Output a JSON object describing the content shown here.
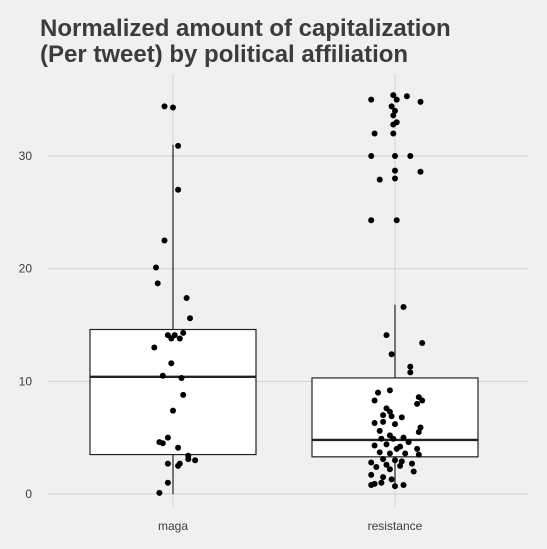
{
  "chart_data": {
    "type": "box",
    "title_lines": [
      "Normalized amount of capitalization",
      "(Per tweet) by political affiliation"
    ],
    "xlabel": "",
    "ylabel": "",
    "categories": [
      "maga",
      "resistance"
    ],
    "ylim": [
      -1,
      37
    ],
    "y_ticks": [
      0,
      10,
      20,
      30
    ],
    "grid": true,
    "boxes": [
      {
        "category": "maga",
        "q1": 3.5,
        "median": 10.4,
        "q3": 14.6,
        "whisker_low": 0,
        "whisker_high": 31.0
      },
      {
        "category": "resistance",
        "q1": 3.3,
        "median": 4.8,
        "q3": 10.3,
        "whisker_low": 0.6,
        "whisker_high": 16.8
      }
    ],
    "points": {
      "maga": [
        [
          -0.05,
          34.4
        ],
        [
          0.0,
          34.3
        ],
        [
          0.03,
          30.9
        ],
        [
          0.03,
          27.0
        ],
        [
          -0.05,
          22.5
        ],
        [
          -0.1,
          20.1
        ],
        [
          -0.09,
          18.7
        ],
        [
          0.08,
          17.4
        ],
        [
          0.1,
          15.6
        ],
        [
          0.06,
          14.3
        ],
        [
          -0.03,
          14.1
        ],
        [
          0.01,
          14.1
        ],
        [
          0.04,
          13.8
        ],
        [
          -0.01,
          13.8
        ],
        [
          -0.11,
          13.0
        ],
        [
          -0.01,
          11.6
        ],
        [
          -0.06,
          10.5
        ],
        [
          0.05,
          10.3
        ],
        [
          0.06,
          8.8
        ],
        [
          0.0,
          7.4
        ],
        [
          -0.03,
          5.0
        ],
        [
          -0.08,
          4.6
        ],
        [
          -0.06,
          4.5
        ],
        [
          0.03,
          4.1
        ],
        [
          0.09,
          3.4
        ],
        [
          0.09,
          3.1
        ],
        [
          0.13,
          3.0
        ],
        [
          0.04,
          2.7
        ],
        [
          -0.03,
          2.7
        ],
        [
          0.03,
          2.5
        ],
        [
          -0.03,
          1.0
        ],
        [
          -0.08,
          0.1
        ]
      ],
      "resistance": [
        [
          -0.14,
          35.0
        ],
        [
          -0.01,
          35.4
        ],
        [
          0.07,
          35.3
        ],
        [
          0.01,
          35.0
        ],
        [
          0.15,
          34.8
        ],
        [
          -0.02,
          34.4
        ],
        [
          0.0,
          34.0
        ],
        [
          -0.01,
          33.6
        ],
        [
          0.01,
          33.0
        ],
        [
          -0.01,
          32.8
        ],
        [
          -0.01,
          32.0
        ],
        [
          -0.12,
          32.0
        ],
        [
          -0.14,
          30.0
        ],
        [
          0.0,
          30.0
        ],
        [
          0.09,
          30.0
        ],
        [
          0.0,
          28.7
        ],
        [
          0.15,
          28.6
        ],
        [
          0.0,
          28.0
        ],
        [
          -0.09,
          27.9
        ],
        [
          -0.14,
          24.3
        ],
        [
          0.01,
          24.3
        ],
        [
          0.05,
          16.6
        ],
        [
          -0.05,
          14.1
        ],
        [
          0.16,
          13.4
        ],
        [
          -0.02,
          12.4
        ],
        [
          0.09,
          11.3
        ],
        [
          0.09,
          10.8
        ],
        [
          -0.03,
          9.2
        ],
        [
          -0.1,
          9.0
        ],
        [
          0.14,
          8.6
        ],
        [
          0.16,
          8.3
        ],
        [
          0.13,
          8.0
        ],
        [
          -0.12,
          8.3
        ],
        [
          -0.05,
          7.6
        ],
        [
          -0.03,
          7.3
        ],
        [
          -0.07,
          7.0
        ],
        [
          -0.02,
          6.9
        ],
        [
          0.04,
          6.8
        ],
        [
          -0.12,
          6.3
        ],
        [
          -0.07,
          6.4
        ],
        [
          0.0,
          6.2
        ],
        [
          0.15,
          5.9
        ],
        [
          0.14,
          5.5
        ],
        [
          -0.09,
          5.6
        ],
        [
          -0.03,
          5.2
        ],
        [
          0.05,
          5.0
        ],
        [
          -0.08,
          4.9
        ],
        [
          -0.01,
          4.9
        ],
        [
          0.08,
          4.6
        ],
        [
          -0.05,
          4.4
        ],
        [
          0.03,
          4.2
        ],
        [
          -0.12,
          4.3
        ],
        [
          0.01,
          4.0
        ],
        [
          0.13,
          4.0
        ],
        [
          -0.09,
          3.7
        ],
        [
          -0.03,
          3.6
        ],
        [
          0.06,
          3.6
        ],
        [
          0.14,
          3.5
        ],
        [
          -0.07,
          3.1
        ],
        [
          0.0,
          3.0
        ],
        [
          0.04,
          2.9
        ],
        [
          -0.14,
          2.8
        ],
        [
          -0.05,
          2.6
        ],
        [
          0.1,
          2.7
        ],
        [
          0.03,
          2.5
        ],
        [
          -0.11,
          2.4
        ],
        [
          0.11,
          2.0
        ],
        [
          -0.03,
          2.2
        ],
        [
          -0.14,
          1.7
        ],
        [
          -0.07,
          1.5
        ],
        [
          -0.02,
          1.3
        ],
        [
          -0.08,
          1.0
        ],
        [
          -0.12,
          0.9
        ],
        [
          -0.14,
          0.8
        ],
        [
          0.05,
          0.8
        ],
        [
          0.0,
          0.7
        ]
      ]
    }
  },
  "colors": {
    "background": "#f0f0f0",
    "grid": "#d2d2d2",
    "box_fill": "#ffffff",
    "line": "#222222",
    "point": "#000000",
    "text": "#3c3c3c"
  }
}
